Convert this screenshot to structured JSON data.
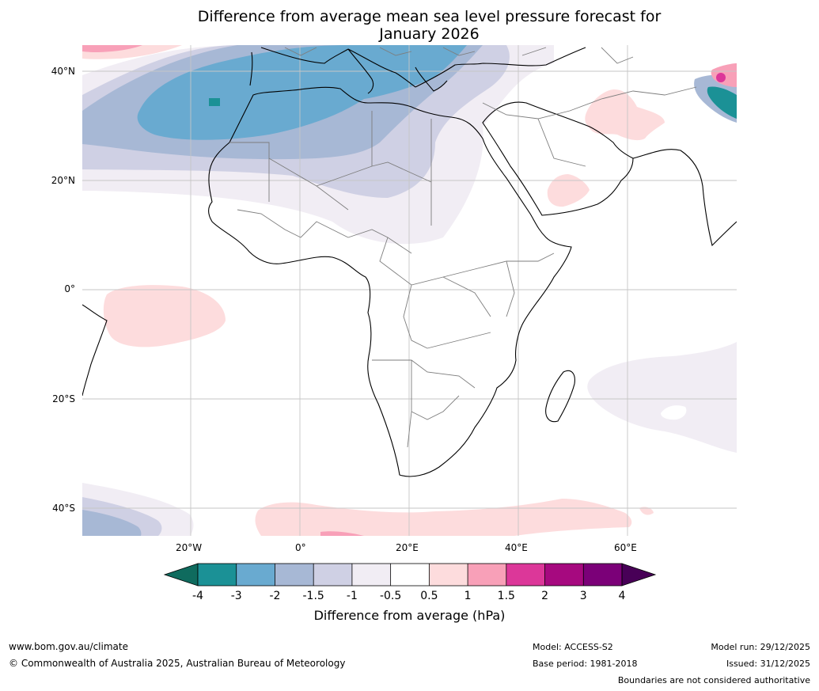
{
  "title_line1": "Difference from average mean sea level pressure forecast for",
  "title_line2": "January 2026",
  "lat_labels": [
    "40°N",
    "20°N",
    "0°",
    "20°S",
    "40°S"
  ],
  "lon_labels": [
    "20°W",
    "0°",
    "20°E",
    "40°E",
    "60°E"
  ],
  "colorbar": {
    "ticks": [
      "-4",
      "-3",
      "-2",
      "-1.5",
      "-1",
      "-0.5",
      "0.5",
      "1",
      "1.5",
      "2",
      "3",
      "4"
    ],
    "label": "Difference from average (hPa)",
    "colors": [
      "#0f6b5e",
      "#1b9196",
      "#69aad0",
      "#a7b8d5",
      "#cfd0e4",
      "#f1edf4",
      "#ffffff",
      "#fddcdd",
      "#f8a0b8",
      "#dc3799",
      "#a6097f",
      "#7b0078",
      "#480057"
    ]
  },
  "footer": {
    "website": "www.bom.gov.au/climate",
    "copyright": "© Commonwealth of Australia 2025, Australian Bureau of Meteorology",
    "model": "Model: ACCESS-S2",
    "base_period": "Base period: 1981-2018",
    "model_run": "Model run: 29/12/2025",
    "issued": "Issued: 31/12/2025",
    "disclaimer": "Boundaries are not considered authoritative"
  }
}
